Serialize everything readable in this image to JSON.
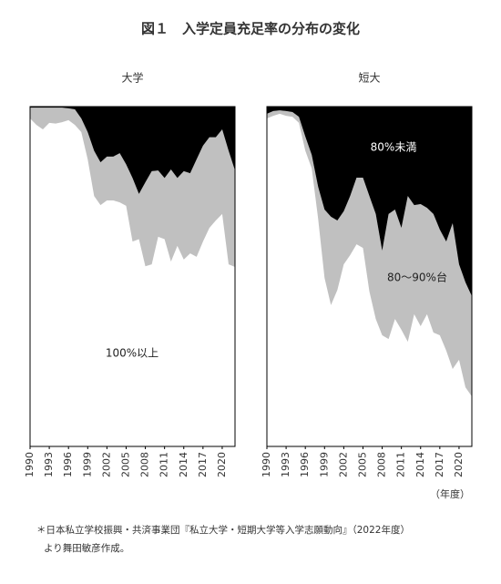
{
  "title": "図１　入学定員充足率の分布の変化",
  "note": [
    "＊日本私立学校振興・共済事業団『私立大学・短期大学等入学志願動向』（2022年度）",
    "より舞田敏彦作成。"
  ],
  "chart_data": [
    {
      "type": "area",
      "stacked": true,
      "title": "大学",
      "x": [
        1990,
        1991,
        1992,
        1993,
        1994,
        1995,
        1996,
        1997,
        1998,
        1999,
        2000,
        2001,
        2002,
        2003,
        2004,
        2005,
        2006,
        2007,
        2008,
        2009,
        2010,
        2011,
        2012,
        2013,
        2014,
        2015,
        2016,
        2017,
        2018,
        2019,
        2020,
        2021,
        2022
      ],
      "xlim": [
        1990,
        2022
      ],
      "xticks": [
        1990,
        1993,
        1996,
        1999,
        2002,
        2005,
        2008,
        2011,
        2014,
        2017,
        2020
      ],
      "ylim": [
        0,
        100
      ],
      "series": [
        {
          "name": "100%以上",
          "color": "#ffffff",
          "values": [
            96.5,
            94.6,
            93.3,
            95.2,
            95.0,
            95.4,
            96.0,
            94.6,
            92.5,
            84.5,
            73.7,
            71.0,
            72.4,
            72.4,
            71.8,
            70.8,
            60.3,
            61.0,
            53.0,
            53.6,
            61.7,
            61.0,
            54.4,
            59.0,
            55.0,
            56.8,
            55.8,
            60.3,
            64.3,
            66.5,
            68.4,
            53.6,
            52.8
          ]
        },
        {
          "color": "#c0c0c0",
          "values": [
            3.2,
            5.1,
            6.4,
            4.5,
            4.7,
            4.3,
            3.5,
            4.6,
            4.0,
            8.0,
            13.3,
            12.6,
            12.9,
            12.9,
            14.5,
            12.2,
            18.7,
            13.3,
            24.7,
            27.4,
            19.5,
            18.0,
            27.1,
            20.0,
            26.0,
            23.6,
            28.7,
            28.2,
            26.7,
            24.5,
            24.9,
            33.4,
            28.4
          ]
        },
        {
          "color": "#000000",
          "values": [
            0.3,
            0.3,
            0.3,
            0.3,
            0.3,
            0.3,
            0.5,
            0.8,
            3.5,
            7.5,
            13.0,
            16.4,
            14.7,
            14.7,
            13.7,
            17.0,
            21.0,
            25.7,
            22.3,
            19.0,
            18.8,
            21.0,
            18.5,
            21.0,
            19.0,
            19.6,
            15.5,
            11.5,
            9.0,
            9.0,
            6.7,
            13.0,
            18.8
          ]
        }
      ]
    },
    {
      "type": "area",
      "stacked": true,
      "title": "短大",
      "x_label": "（年度）",
      "x": [
        1990,
        1991,
        1992,
        1993,
        1994,
        1995,
        1996,
        1997,
        1998,
        1999,
        2000,
        2001,
        2002,
        2003,
        2004,
        2005,
        2006,
        2007,
        2008,
        2009,
        2010,
        2011,
        2012,
        2013,
        2014,
        2015,
        2016,
        2017,
        2018,
        2019,
        2020,
        2021,
        2022
      ],
      "xlim": [
        1990,
        2022
      ],
      "xticks": [
        1990,
        1993,
        1996,
        1999,
        2002,
        2005,
        2008,
        2011,
        2014,
        2017,
        2020
      ],
      "ylim": [
        0,
        100
      ],
      "series": [
        {
          "color": "#ffffff",
          "values": [
            96.5,
            97.3,
            97.9,
            97.3,
            97.0,
            95.2,
            87.0,
            81.8,
            67.0,
            49.6,
            41.6,
            46.0,
            53.6,
            56.3,
            59.5,
            58.4,
            45.6,
            37.5,
            32.7,
            31.6,
            37.5,
            34.3,
            30.8,
            38.9,
            35.4,
            38.9,
            33.5,
            32.7,
            28.2,
            22.8,
            25.5,
            17.4,
            14.7
          ]
        },
        {
          "name": "80～90%台",
          "color": "#c0c0c0",
          "values": [
            1.4,
            1.4,
            1.0,
            1.4,
            1.4,
            1.8,
            4.2,
            4.0,
            9.4,
            20.1,
            26.0,
            20.5,
            15.6,
            17.4,
            19.6,
            20.7,
            28.1,
            30.9,
            24.9,
            36.8,
            32.2,
            30.0,
            42.9,
            32.1,
            35.9,
            31.3,
            34.9,
            31.1,
            32.1,
            42.9,
            28.1,
            30.9,
            29.5
          ]
        },
        {
          "name": "80%未満",
          "color": "#000000",
          "values": [
            2.1,
            1.3,
            1.1,
            1.3,
            1.6,
            3.0,
            8.8,
            14.2,
            23.6,
            30.3,
            32.4,
            33.5,
            30.8,
            26.3,
            20.9,
            20.9,
            26.3,
            31.6,
            42.4,
            31.6,
            30.3,
            35.7,
            26.3,
            29.0,
            28.7,
            29.8,
            31.6,
            36.2,
            39.7,
            34.3,
            46.4,
            51.7,
            55.8
          ]
        }
      ]
    }
  ]
}
